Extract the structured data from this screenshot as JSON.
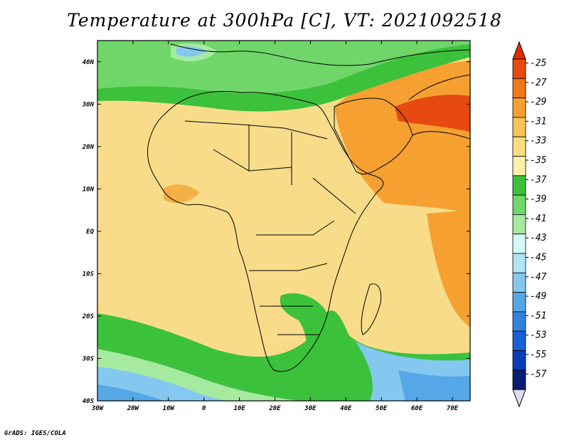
{
  "title": "Temperature at 300hPa [C], VT: 2021092518",
  "credit": "GrADS: IGES/COLA",
  "x_axis_labels": [
    "30W",
    "20W",
    "10W",
    "0",
    "10E",
    "20E",
    "30E",
    "40E",
    "50E",
    "60E",
    "70E"
  ],
  "y_axis_labels": [
    "40N",
    "30N",
    "20N",
    "10N",
    "EQ",
    "10S",
    "20S",
    "30S",
    "40S"
  ],
  "colorbar": {
    "labels": [
      "-25",
      "-27",
      "-29",
      "-31",
      "-33",
      "-35",
      "-37",
      "-39",
      "-41",
      "-43",
      "-45",
      "-47",
      "-49",
      "-51",
      "-53",
      "-55",
      "-57"
    ],
    "colors": [
      "#e64a10",
      "#f07818",
      "#f5a030",
      "#f7c455",
      "#fadd80",
      "#fcf0a6",
      "#3cc13c",
      "#70d66a",
      "#a6eaa0",
      "#d4f9f7",
      "#b2e3f7",
      "#84c8f0",
      "#55a7e8",
      "#3282e0",
      "#1a5ed6",
      "#0a3fb8",
      "#0a1e72"
    ],
    "top_arrow_color": "#e12c00",
    "bottom_arrow_color": "#dcdcf7"
  },
  "map": {
    "lon_range": [
      -30,
      75
    ],
    "lat_range": [
      -40,
      45
    ],
    "fields": {
      "ocean_background": "#f8dc8a",
      "land_fill": "#fbe39e",
      "warm_region": "#f5a030",
      "hot_region": "#e64a10",
      "cool_band": "#3cc13c",
      "cold_region": "#55a7e8"
    }
  }
}
